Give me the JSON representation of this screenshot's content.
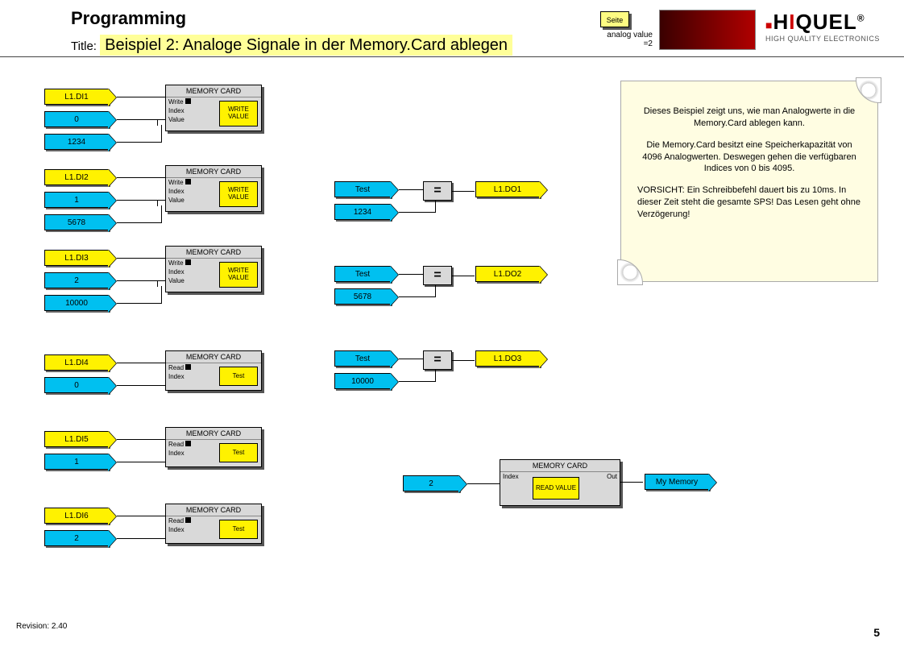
{
  "header": {
    "heading": "Programming",
    "title_label": "Title:",
    "title_value": "Beispiel 2: Analoge Signale in der Memory.Card ablegen",
    "seite": "Seite",
    "analog_value": "analog value\n=2",
    "logo_name": "HIQUEL",
    "logo_sub": "HIGH QUALITY ELECTRONICS"
  },
  "colors": {
    "yellow": "#fff200",
    "cyan": "#00c0f0",
    "grey": "#d9d9d9",
    "note_bg": "#fffde2"
  },
  "note": {
    "p1": "Dieses Beispiel zeigt uns, wie man Analogwerte in die Memory.Card ablegen kann.",
    "p2": "Die Memory.Card besitzt eine Speicherkapazität von 4096 Analogwerten. Deswegen gehen die verfügbaren Indices von 0 bis 4095.",
    "p3": "VORSICHT: Ein Schreibbefehl dauert bis zu 10ms. In dieser Zeit steht die gesamte SPS! Das Lesen geht ohne Verzögerung!"
  },
  "labels": {
    "memcard": "MEMORY CARD",
    "write": "Write",
    "index": "Index",
    "value": "Value",
    "read": "Read",
    "out": "Out",
    "write_value": "WRITE VALUE",
    "read_value": "READ VALUE",
    "test": "Test",
    "eq": "=",
    "my_memory": "My Memory"
  },
  "write_blocks": [
    {
      "di": "L1.DI1",
      "idx": "0",
      "val": "1234"
    },
    {
      "di": "L1.DI2",
      "idx": "1",
      "val": "5678"
    },
    {
      "di": "L1.DI3",
      "idx": "2",
      "val": "10000"
    }
  ],
  "read_blocks": [
    {
      "di": "L1.DI4",
      "idx": "0"
    },
    {
      "di": "L1.DI5",
      "idx": "1"
    },
    {
      "di": "L1.DI6",
      "idx": "2"
    }
  ],
  "compare_blocks": [
    {
      "val": "1234",
      "do": "L1.DO1"
    },
    {
      "val": "5678",
      "do": "L1.DO2"
    },
    {
      "val": "10000",
      "do": "L1.DO3"
    }
  ],
  "bottom_read": {
    "idx": "2",
    "out": "My Memory"
  },
  "footer": {
    "revision": "Revision: 2.40",
    "page": "5"
  }
}
